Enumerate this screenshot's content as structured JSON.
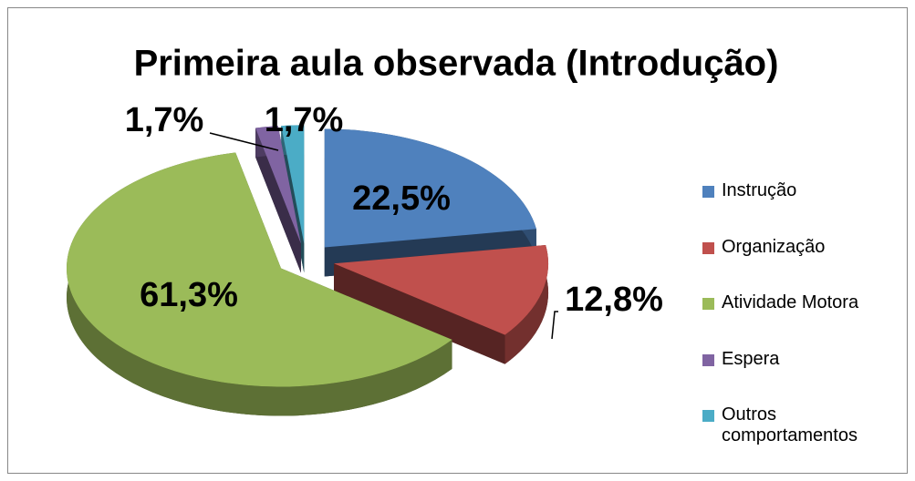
{
  "chart_data": {
    "type": "pie",
    "title": "Primeira aula observada (Introdução)",
    "categories": [
      "Instrução",
      "Organização",
      "Atividade Motora",
      "Espera",
      "Outros comportamentos"
    ],
    "values": [
      22.5,
      12.8,
      61.3,
      1.7,
      1.7
    ],
    "value_labels": [
      "22,5%",
      "12,8%",
      "61,3%",
      "1,7%",
      "1,7%"
    ],
    "colors": [
      "#4f81bd",
      "#c0504d",
      "#9bbb59",
      "#8064a2",
      "#4bacc6"
    ],
    "legend": "right"
  }
}
